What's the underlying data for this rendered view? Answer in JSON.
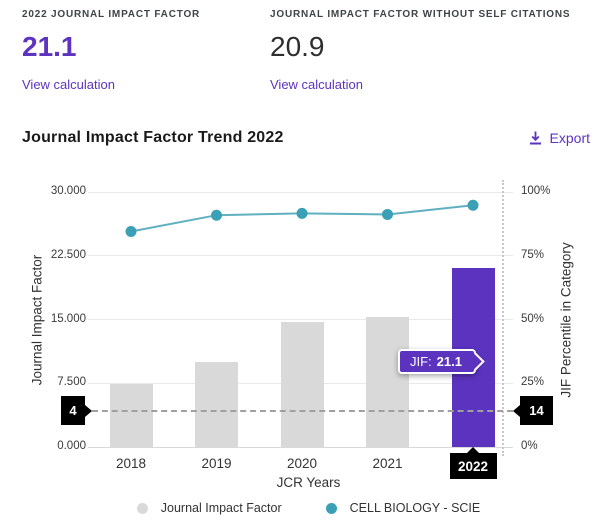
{
  "stats": {
    "jif": {
      "label": "2022 JOURNAL IMPACT FACTOR",
      "value": "21.1",
      "link": "View calculation"
    },
    "jif_no_self": {
      "label": "JOURNAL IMPACT FACTOR WITHOUT SELF CITATIONS",
      "value": "20.9",
      "link": "View calculation"
    }
  },
  "trend": {
    "title": "Journal Impact Factor Trend 2022",
    "export_label": "Export"
  },
  "chart_data": {
    "type": "bar+line",
    "categories": [
      "2018",
      "2019",
      "2020",
      "2021",
      "2022"
    ],
    "series": [
      {
        "name": "Journal Impact Factor",
        "type": "bar",
        "axis": "left",
        "values": [
          7.4,
          10.0,
          14.7,
          15.3,
          21.1
        ],
        "color": "#d9d9d9",
        "highlight_color": "#5b33bf"
      },
      {
        "name": "CELL BIOLOGY - SCIE",
        "type": "line",
        "axis": "right",
        "values": [
          84.5,
          90.9,
          91.6,
          91.2,
          94.8
        ],
        "color": "#3ba0b5",
        "line_color": "#5fb0c0"
      }
    ],
    "left_axis": {
      "title": "Journal Impact Factor",
      "ticks": [
        "0.000",
        "7.500",
        "15.000",
        "22.500",
        "30.000"
      ],
      "range": [
        0,
        30
      ]
    },
    "right_axis": {
      "title": "JIF Percentile in Category",
      "ticks": [
        "0%",
        "25%",
        "50%",
        "75%",
        "100%"
      ],
      "range": [
        0,
        100
      ]
    },
    "xlabel": "JCR Years",
    "highlighted_category": "2022",
    "tooltip": {
      "label": "JIF:",
      "value": "21.1"
    },
    "crosshair": {
      "left_label": "4",
      "right_label": "14",
      "jif_value": 4,
      "percentile_value": 14
    },
    "grid": true,
    "legend_position": "bottom"
  },
  "colors": {
    "accent_purple": "#5e33bf",
    "bar_gray": "#d9d9d9",
    "bar_purple": "#5b33bf",
    "line_teal": "#3ba0b5",
    "tag_black": "#000000"
  }
}
